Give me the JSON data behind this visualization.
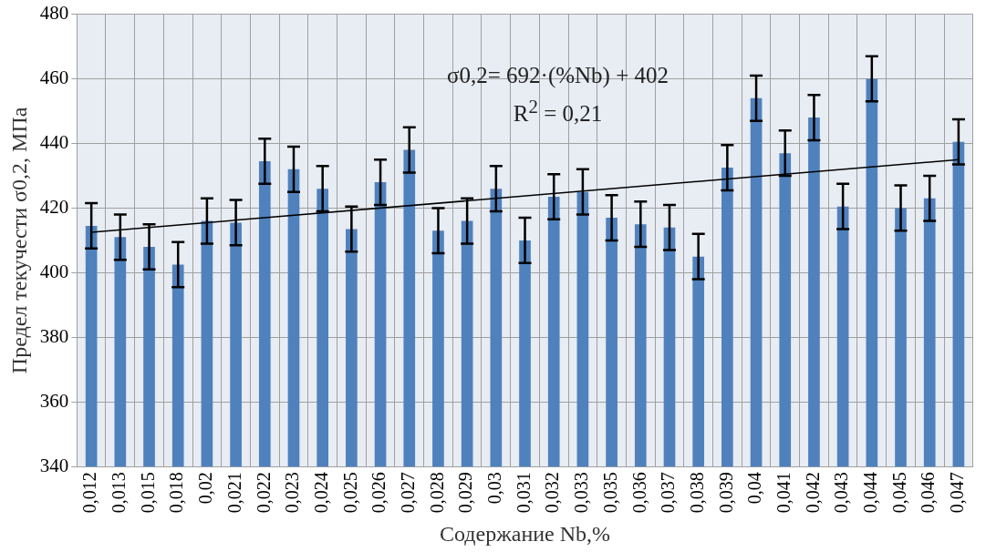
{
  "chart_data": {
    "type": "bar",
    "xlabel": "Содержание Nb,%",
    "ylabel": "Предел текучести σ0,2, МПа",
    "categories": [
      "0,012",
      "0,013",
      "0,015",
      "0,018",
      "0,02",
      "0,021",
      "0,022",
      "0,023",
      "0,024",
      "0,025",
      "0,026",
      "0,027",
      "0,028",
      "0,029",
      "0,03",
      "0,031",
      "0,032",
      "0,033",
      "0,035",
      "0,036",
      "0,037",
      "0,038",
      "0,039",
      "0,04",
      "0,041",
      "0,042",
      "0,043",
      "0,044",
      "0,045",
      "0,046",
      "0,047"
    ],
    "series": [
      {
        "color": "#4f81bd",
        "values": [
          414.5,
          411,
          408,
          402.5,
          416,
          415.5,
          434.5,
          432,
          426,
          413.5,
          428,
          438,
          413,
          416,
          426,
          410,
          423.5,
          425,
          417,
          415,
          414,
          405,
          432.5,
          454,
          437,
          448,
          420.5,
          460,
          420,
          423,
          440.5
        ],
        "errors": [
          7,
          7,
          7,
          7,
          7,
          7,
          7,
          7,
          7,
          7,
          7,
          7,
          7,
          7,
          7,
          7,
          7,
          7,
          7,
          7,
          7,
          7,
          7,
          7,
          7,
          7,
          7,
          7,
          7,
          7,
          7
        ]
      },
      {
        "type": "line",
        "color": "#000000",
        "x": [
          "0,012",
          "0,047"
        ],
        "values": [
          412.5,
          435
        ]
      }
    ],
    "ylim": [
      340,
      480
    ],
    "yticks": [
      340,
      360,
      380,
      400,
      420,
      440,
      460,
      480
    ],
    "grid": true,
    "annotations": [
      "σ0,2= 692·(%Nb) + 402",
      "R$^{2}$ = 0,21"
    ]
  }
}
